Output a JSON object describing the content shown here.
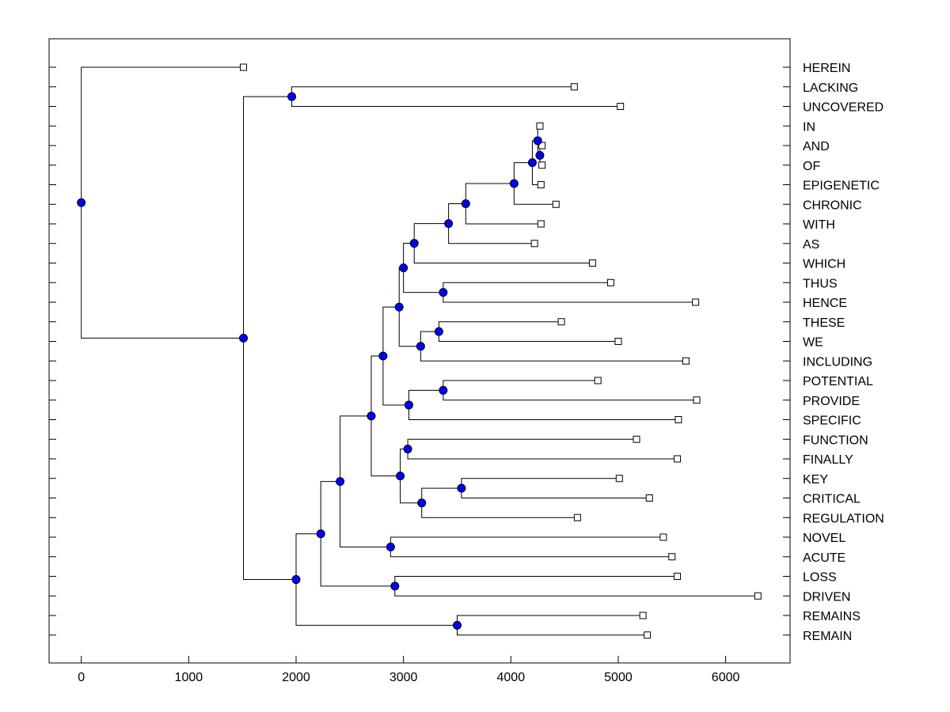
{
  "chart_data": {
    "type": "dendrogram",
    "orientation": "horizontal",
    "xlim": [
      -300,
      6600
    ],
    "x_ticks": [
      0,
      1000,
      2000,
      3000,
      4000,
      5000,
      6000
    ],
    "x_tick_labels": [
      "0",
      "1000",
      "2000",
      "3000",
      "4000",
      "5000",
      "6000"
    ],
    "grid": false,
    "colors": {
      "node": "#0000ff",
      "line": "#000000",
      "leaf": "#ffffff"
    },
    "leaves": [
      {
        "label": "HEREIN",
        "x": 1510
      },
      {
        "label": "LACKING",
        "x": 4590
      },
      {
        "label": "UNCOVERED",
        "x": 5020
      },
      {
        "label": "IN",
        "x": 4270
      },
      {
        "label": "AND",
        "x": 4290
      },
      {
        "label": "OF",
        "x": 4290
      },
      {
        "label": "EPIGENETIC",
        "x": 4280
      },
      {
        "label": "CHRONIC",
        "x": 4420
      },
      {
        "label": "WITH",
        "x": 4280
      },
      {
        "label": "AS",
        "x": 4220
      },
      {
        "label": "WHICH",
        "x": 4760
      },
      {
        "label": "THUS",
        "x": 4930
      },
      {
        "label": "HENCE",
        "x": 5720
      },
      {
        "label": "THESE",
        "x": 4470
      },
      {
        "label": "WE",
        "x": 5000
      },
      {
        "label": "INCLUDING",
        "x": 5630
      },
      {
        "label": "POTENTIAL",
        "x": 4810
      },
      {
        "label": "PROVIDE",
        "x": 5730
      },
      {
        "label": "SPECIFIC",
        "x": 5560
      },
      {
        "label": "FUNCTION",
        "x": 5170
      },
      {
        "label": "FINALLY",
        "x": 5550
      },
      {
        "label": "KEY",
        "x": 5010
      },
      {
        "label": "CRITICAL",
        "x": 5290
      },
      {
        "label": "REGULATION",
        "x": 4620
      },
      {
        "label": "NOVEL",
        "x": 5420
      },
      {
        "label": "ACUTE",
        "x": 5500
      },
      {
        "label": "LOSS",
        "x": 5550
      },
      {
        "label": "DRIVEN",
        "x": 6300
      },
      {
        "label": "REMAINS",
        "x": 5230
      },
      {
        "label": "REMAIN",
        "x": 5270
      }
    ],
    "nodes": [
      {
        "id": "n_and_of",
        "x": 4270,
        "children": [
          "AND",
          "OF"
        ]
      },
      {
        "id": "n_in",
        "x": 4250,
        "children": [
          "IN",
          "n_and_of"
        ]
      },
      {
        "id": "n_epi",
        "x": 4200,
        "children": [
          "n_in",
          "EPIGENETIC"
        ]
      },
      {
        "id": "n_c1",
        "x": 4030,
        "children": [
          "n_epi",
          "CHRONIC"
        ]
      },
      {
        "id": "n_c2",
        "x": 3580,
        "children": [
          "n_c1",
          "WITH"
        ]
      },
      {
        "id": "n_c3",
        "x": 3420,
        "children": [
          "n_c2",
          "AS"
        ]
      },
      {
        "id": "n_c4",
        "x": 3100,
        "children": [
          "n_c3",
          "WHICH"
        ]
      },
      {
        "id": "n_thus",
        "x": 3370,
        "children": [
          "THUS",
          "HENCE"
        ]
      },
      {
        "id": "n_c5",
        "x": 3000,
        "children": [
          "n_c4",
          "n_thus"
        ]
      },
      {
        "id": "n_these",
        "x": 3330,
        "children": [
          "THESE",
          "WE"
        ]
      },
      {
        "id": "n_c6",
        "x": 3160,
        "children": [
          "n_these",
          "INCLUDING"
        ]
      },
      {
        "id": "n_c7",
        "x": 2960,
        "children": [
          "n_c5",
          "n_c6"
        ]
      },
      {
        "id": "n_pot",
        "x": 3370,
        "children": [
          "POTENTIAL",
          "PROVIDE"
        ]
      },
      {
        "id": "n_c8",
        "x": 3050,
        "children": [
          "n_pot",
          "SPECIFIC"
        ]
      },
      {
        "id": "n_c9",
        "x": 2810,
        "children": [
          "n_c7",
          "n_c8"
        ]
      },
      {
        "id": "n_func",
        "x": 3040,
        "children": [
          "FUNCTION",
          "FINALLY"
        ]
      },
      {
        "id": "n_key",
        "x": 3540,
        "children": [
          "KEY",
          "CRITICAL"
        ]
      },
      {
        "id": "n_c10",
        "x": 3170,
        "children": [
          "n_key",
          "REGULATION"
        ]
      },
      {
        "id": "n_c11",
        "x": 2970,
        "children": [
          "n_func",
          "n_c10"
        ]
      },
      {
        "id": "n_c12",
        "x": 2700,
        "children": [
          "n_c9",
          "n_c11"
        ]
      },
      {
        "id": "n_novel",
        "x": 2880,
        "children": [
          "NOVEL",
          "ACUTE"
        ]
      },
      {
        "id": "n_c13",
        "x": 2410,
        "children": [
          "n_c12",
          "n_novel"
        ]
      },
      {
        "id": "n_loss",
        "x": 2920,
        "children": [
          "LOSS",
          "DRIVEN"
        ]
      },
      {
        "id": "n_c14",
        "x": 2230,
        "children": [
          "n_c13",
          "n_loss"
        ]
      },
      {
        "id": "n_rem",
        "x": 3500,
        "children": [
          "REMAINS",
          "REMAIN"
        ]
      },
      {
        "id": "n_c15",
        "x": 2000,
        "children": [
          "n_c14",
          "n_rem"
        ]
      },
      {
        "id": "n_lack",
        "x": 1960,
        "children": [
          "LACKING",
          "UNCOVERED"
        ]
      },
      {
        "id": "n_c16",
        "x": 1510,
        "children": [
          "n_lack",
          "n_c15"
        ]
      },
      {
        "id": "n_root",
        "x": 0,
        "children": [
          "HEREIN",
          "n_c16"
        ]
      }
    ]
  }
}
